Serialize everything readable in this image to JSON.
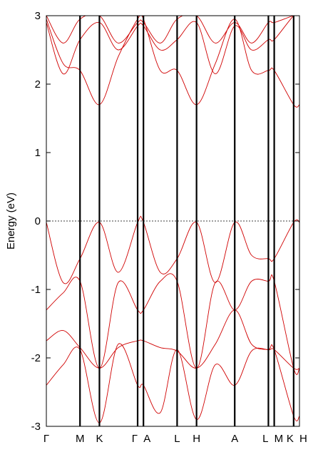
{
  "chart_data": {
    "type": "line",
    "title": "",
    "xlabel": "",
    "ylabel": "Energy (eV)",
    "ylim": [
      -3,
      3
    ],
    "yticks": [
      -3,
      -2,
      -1,
      0,
      1,
      2,
      3
    ],
    "ytick_labels": [
      "-3",
      "-2",
      "-1",
      "0",
      "1",
      "2",
      "3"
    ],
    "grid": false,
    "legend": "none",
    "line_color": "#d00000",
    "fermi_level": 0,
    "kpath": {
      "labels": [
        "Γ",
        "M",
        "K",
        "Γ",
        "A",
        "L",
        "H",
        "A",
        "L",
        "M",
        "K",
        "H"
      ],
      "x": [
        0,
        0.52,
        0.82,
        1.41,
        1.5,
        2.02,
        2.32,
        2.91,
        3.43,
        3.52,
        3.82,
        3.91
      ]
    },
    "series": [
      {
        "x": [
          0,
          0.26,
          0.52,
          0.82,
          1.11,
          1.41,
          1.5,
          1.76,
          2.02,
          2.32,
          2.61,
          2.91,
          3.17,
          3.43,
          3.52,
          3.82,
          3.91
        ],
        "values": [
          -0.02,
          -0.9,
          -0.55,
          -0.02,
          -0.75,
          -0.02,
          -0.02,
          -0.75,
          -0.55,
          -0.02,
          -0.9,
          -0.02,
          -0.5,
          -0.55,
          -0.55,
          -0.02,
          -0.02
        ]
      },
      {
        "x": [
          0,
          0.26,
          0.52,
          0.82,
          1.11,
          1.41,
          1.5,
          1.76,
          2.02,
          2.32,
          2.61,
          2.91,
          3.17,
          3.43,
          3.52,
          3.82,
          3.91
        ],
        "values": [
          -1.3,
          -1.05,
          -0.88,
          -2.15,
          -0.9,
          -1.3,
          -1.3,
          -0.88,
          -0.88,
          -2.15,
          -0.9,
          -1.3,
          -0.88,
          -0.88,
          -0.88,
          -2.15,
          -2.15
        ]
      },
      {
        "x": [
          0,
          0.26,
          0.52,
          0.82,
          1.11,
          1.41,
          1.5,
          1.76,
          2.02,
          2.32,
          2.61,
          2.91,
          3.17,
          3.43,
          3.52,
          3.82,
          3.91
        ],
        "values": [
          -1.75,
          -1.6,
          -1.85,
          -2.15,
          -1.85,
          -1.75,
          -1.75,
          -1.85,
          -1.9,
          -2.15,
          -1.8,
          -1.3,
          -1.8,
          -1.88,
          -1.88,
          -2.15,
          -2.15
        ]
      },
      {
        "x": [
          0,
          0.26,
          0.52,
          0.82,
          1.11,
          1.41,
          1.5,
          1.76,
          2.02,
          2.32,
          2.61,
          2.91,
          3.17,
          3.43,
          3.52,
          3.82,
          3.91
        ],
        "values": [
          -2.4,
          -2.1,
          -1.88,
          -2.95,
          -1.8,
          -2.4,
          -2.4,
          -2.8,
          -1.88,
          -2.9,
          -2.1,
          -2.4,
          -1.9,
          -1.88,
          -1.88,
          -2.85,
          -2.85
        ]
      },
      {
        "x": [
          0,
          0.26,
          0.52,
          0.82,
          1.11,
          1.41,
          1.5,
          1.76,
          2.02,
          2.32,
          2.61,
          2.91,
          3.17,
          3.43,
          3.52,
          3.82,
          3.91
        ],
        "values": [
          2.95,
          2.3,
          2.2,
          1.7,
          2.4,
          2.95,
          2.95,
          2.2,
          2.2,
          1.7,
          2.3,
          2.95,
          2.2,
          2.2,
          2.2,
          1.7,
          1.7
        ]
      },
      {
        "x": [
          0,
          0.26,
          0.52,
          0.82,
          1.11,
          1.41,
          1.5,
          1.76,
          2.02,
          2.32,
          2.61,
          2.91,
          3.17,
          3.43,
          3.52,
          3.82,
          3.91
        ],
        "values": [
          2.9,
          2.15,
          2.65,
          2.9,
          2.5,
          2.85,
          2.85,
          2.5,
          2.65,
          2.9,
          2.15,
          2.85,
          2.5,
          2.65,
          2.65,
          3.0,
          3.0
        ]
      },
      {
        "x": [
          0,
          0.26,
          0.52,
          0.82,
          1.11,
          1.41,
          1.5,
          1.76,
          2.02,
          2.32,
          2.61,
          2.91,
          3.17,
          3.43,
          3.52,
          3.82,
          3.91
        ],
        "values": [
          3.0,
          2.6,
          2.95,
          3.0,
          2.6,
          2.9,
          2.9,
          2.6,
          2.95,
          3.0,
          2.6,
          2.9,
          2.6,
          2.9,
          2.9,
          3.0,
          3.0
        ]
      }
    ]
  }
}
